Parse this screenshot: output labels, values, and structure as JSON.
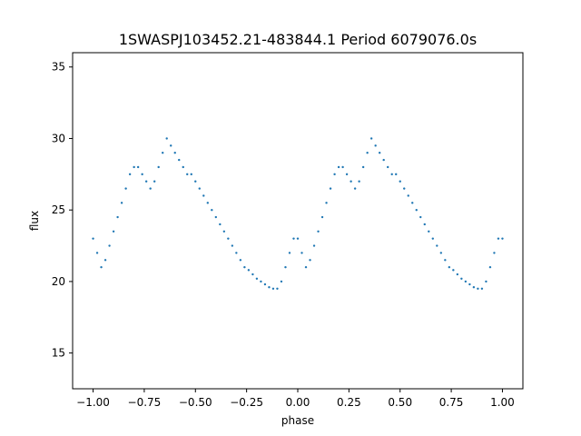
{
  "chart_data": {
    "type": "scatter",
    "title": "1SWASPJ103452.21-483844.1 Period 6079076.0s",
    "xlabel": "phase",
    "ylabel": "flux",
    "xlim": [
      -1.1,
      1.1
    ],
    "ylim": [
      12.5,
      36.0
    ],
    "xticks": [
      -1.0,
      -0.75,
      -0.5,
      -0.25,
      0.0,
      0.25,
      0.5,
      0.75,
      1.0
    ],
    "xtick_labels": [
      "−1.00",
      "−0.75",
      "−0.50",
      "−0.25",
      "0.00",
      "0.25",
      "0.50",
      "0.75",
      "1.00"
    ],
    "yticks": [
      15,
      20,
      25,
      30,
      35
    ],
    "ytick_labels": [
      "15",
      "20",
      "25",
      "30",
      "35"
    ],
    "grid": false,
    "marker_color": "#1f77b4",
    "series": [
      {
        "description_free": true,
        "x": [
          -1.0,
          -0.98,
          -0.96,
          -0.94,
          -0.92,
          -0.9,
          -0.88,
          -0.86,
          -0.84,
          -0.82,
          -0.8,
          -0.78,
          -0.76,
          -0.74,
          -0.72,
          -0.7,
          -0.68,
          -0.66,
          -0.64,
          -0.62,
          -0.6,
          -0.58,
          -0.56,
          -0.54,
          -0.52,
          -0.5,
          -0.48,
          -0.46,
          -0.44,
          -0.42,
          -0.4,
          -0.38,
          -0.36,
          -0.34,
          -0.32,
          -0.3,
          -0.28,
          -0.26,
          -0.24,
          -0.22,
          -0.2,
          -0.18,
          -0.16,
          -0.14,
          -0.12,
          -0.1,
          -0.08,
          -0.06,
          -0.04,
          -0.02,
          0.0,
          0.02,
          0.04,
          0.06,
          0.08,
          0.1,
          0.12,
          0.14,
          0.16,
          0.18,
          0.2,
          0.22,
          0.24,
          0.26,
          0.28,
          0.3,
          0.32,
          0.34,
          0.36,
          0.38,
          0.4,
          0.42,
          0.44,
          0.46,
          0.48,
          0.5,
          0.52,
          0.54,
          0.56,
          0.58,
          0.6,
          0.62,
          0.64,
          0.66,
          0.68,
          0.7,
          0.72,
          0.74,
          0.76,
          0.78,
          0.8,
          0.82,
          0.84,
          0.86,
          0.88,
          0.9,
          0.92,
          0.94,
          0.96,
          0.98,
          1.0
        ],
        "y": [
          23.0,
          22.0,
          21.0,
          21.5,
          22.5,
          23.5,
          24.5,
          25.5,
          26.5,
          27.5,
          28.0,
          28.0,
          27.5,
          27.0,
          26.5,
          27.0,
          28.0,
          29.0,
          30.0,
          29.5,
          29.0,
          28.5,
          28.0,
          27.5,
          27.5,
          27.0,
          26.5,
          26.0,
          25.5,
          25.0,
          24.5,
          24.0,
          23.5,
          23.0,
          22.5,
          22.0,
          21.5,
          21.0,
          20.8,
          20.5,
          20.2,
          20.0,
          19.8,
          19.6,
          19.5,
          19.5,
          20.0,
          21.0,
          22.0,
          23.0,
          23.0,
          22.0,
          21.0,
          21.5,
          22.5,
          23.5,
          24.5,
          25.5,
          26.5,
          27.5,
          28.0,
          28.0,
          27.5,
          27.0,
          26.5,
          27.0,
          28.0,
          29.0,
          30.0,
          29.5,
          29.0,
          28.5,
          28.0,
          27.5,
          27.5,
          27.0,
          26.5,
          26.0,
          25.5,
          25.0,
          24.5,
          24.0,
          23.5,
          23.0,
          22.5,
          22.0,
          21.5,
          21.0,
          20.8,
          20.5,
          20.2,
          20.0,
          19.8,
          19.6,
          19.5,
          19.5,
          20.0,
          21.0,
          22.0,
          23.0,
          23.0
        ]
      }
    ]
  }
}
